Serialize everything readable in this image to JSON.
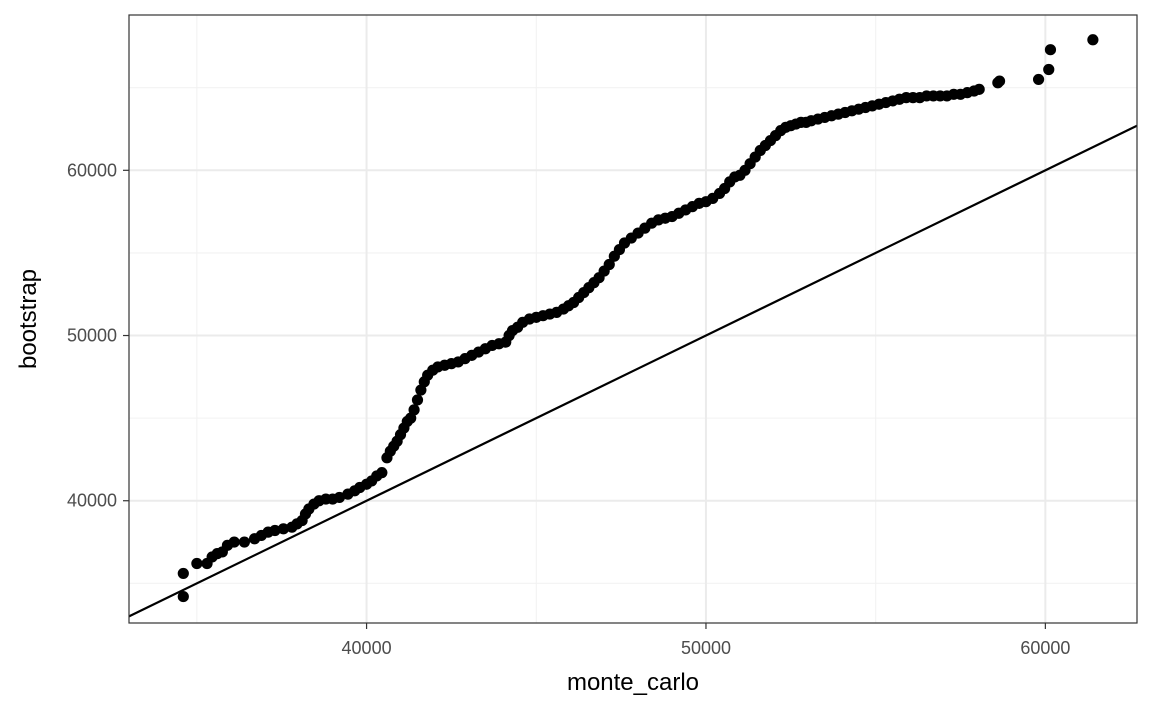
{
  "chart_data": {
    "type": "scatter",
    "title": "",
    "xlabel": "monte_carlo",
    "ylabel": "bootstrap",
    "xlim": [
      33000,
      62700
    ],
    "ylim": [
      32600,
      69400
    ],
    "x_ticks": [
      40000,
      50000,
      60000
    ],
    "y_ticks": [
      40000,
      50000,
      60000
    ],
    "x_tick_labels": [
      "40000",
      "50000",
      "60000"
    ],
    "y_tick_labels": [
      "40000",
      "50000",
      "60000"
    ],
    "grid": true,
    "theme": "bw",
    "reference_line": {
      "type": "identity",
      "slope": 1,
      "intercept": 0
    },
    "series": [
      {
        "marker_color": "#000000",
        "points": [
          [
            34600,
            34200
          ],
          [
            34600,
            35600
          ],
          [
            35000,
            36200
          ],
          [
            35300,
            36200
          ],
          [
            35450,
            36600
          ],
          [
            35600,
            36800
          ],
          [
            35750,
            36900
          ],
          [
            35900,
            37300
          ],
          [
            36100,
            37500
          ],
          [
            36400,
            37500
          ],
          [
            36700,
            37700
          ],
          [
            36900,
            37900
          ],
          [
            37100,
            38100
          ],
          [
            37300,
            38200
          ],
          [
            37550,
            38300
          ],
          [
            37800,
            38400
          ],
          [
            37950,
            38600
          ],
          [
            38100,
            38800
          ],
          [
            38200,
            39200
          ],
          [
            38300,
            39500
          ],
          [
            38450,
            39800
          ],
          [
            38600,
            40000
          ],
          [
            38800,
            40100
          ],
          [
            39000,
            40100
          ],
          [
            39200,
            40200
          ],
          [
            39450,
            40400
          ],
          [
            39650,
            40600
          ],
          [
            39800,
            40800
          ],
          [
            40000,
            41000
          ],
          [
            40150,
            41200
          ],
          [
            40300,
            41500
          ],
          [
            40450,
            41700
          ],
          [
            40600,
            42600
          ],
          [
            40700,
            43000
          ],
          [
            40800,
            43300
          ],
          [
            40900,
            43600
          ],
          [
            41000,
            44000
          ],
          [
            41100,
            44400
          ],
          [
            41200,
            44800
          ],
          [
            41300,
            45000
          ],
          [
            41400,
            45500
          ],
          [
            41500,
            46100
          ],
          [
            41600,
            46700
          ],
          [
            41700,
            47200
          ],
          [
            41800,
            47600
          ],
          [
            41950,
            47900
          ],
          [
            42100,
            48100
          ],
          [
            42300,
            48200
          ],
          [
            42500,
            48300
          ],
          [
            42700,
            48400
          ],
          [
            42900,
            48600
          ],
          [
            43100,
            48800
          ],
          [
            43300,
            49000
          ],
          [
            43500,
            49200
          ],
          [
            43700,
            49400
          ],
          [
            43900,
            49500
          ],
          [
            44100,
            49600
          ],
          [
            44200,
            50000
          ],
          [
            44300,
            50300
          ],
          [
            44450,
            50500
          ],
          [
            44600,
            50800
          ],
          [
            44800,
            51000
          ],
          [
            45000,
            51100
          ],
          [
            45200,
            51200
          ],
          [
            45400,
            51300
          ],
          [
            45600,
            51400
          ],
          [
            45800,
            51600
          ],
          [
            45950,
            51800
          ],
          [
            46100,
            52000
          ],
          [
            46250,
            52300
          ],
          [
            46400,
            52600
          ],
          [
            46550,
            52900
          ],
          [
            46700,
            53200
          ],
          [
            46850,
            53500
          ],
          [
            47000,
            53900
          ],
          [
            47150,
            54300
          ],
          [
            47300,
            54800
          ],
          [
            47450,
            55200
          ],
          [
            47600,
            55600
          ],
          [
            47800,
            55900
          ],
          [
            48000,
            56200
          ],
          [
            48200,
            56500
          ],
          [
            48400,
            56800
          ],
          [
            48600,
            57000
          ],
          [
            48800,
            57100
          ],
          [
            49000,
            57200
          ],
          [
            49200,
            57400
          ],
          [
            49400,
            57600
          ],
          [
            49600,
            57800
          ],
          [
            49800,
            58000
          ],
          [
            50000,
            58100
          ],
          [
            50200,
            58300
          ],
          [
            50400,
            58600
          ],
          [
            50550,
            58900
          ],
          [
            50700,
            59300
          ],
          [
            50850,
            59600
          ],
          [
            51000,
            59700
          ],
          [
            51150,
            60000
          ],
          [
            51300,
            60400
          ],
          [
            51450,
            60800
          ],
          [
            51600,
            61200
          ],
          [
            51750,
            61500
          ],
          [
            51900,
            61800
          ],
          [
            52050,
            62100
          ],
          [
            52200,
            62400
          ],
          [
            52350,
            62600
          ],
          [
            52500,
            62700
          ],
          [
            52650,
            62800
          ],
          [
            52800,
            62900
          ],
          [
            52950,
            62900
          ],
          [
            53100,
            63000
          ],
          [
            53300,
            63100
          ],
          [
            53500,
            63200
          ],
          [
            53700,
            63300
          ],
          [
            53900,
            63400
          ],
          [
            54100,
            63500
          ],
          [
            54300,
            63600
          ],
          [
            54500,
            63700
          ],
          [
            54700,
            63800
          ],
          [
            54900,
            63900
          ],
          [
            55100,
            64000
          ],
          [
            55300,
            64100
          ],
          [
            55500,
            64200
          ],
          [
            55700,
            64300
          ],
          [
            55900,
            64400
          ],
          [
            56100,
            64400
          ],
          [
            56300,
            64400
          ],
          [
            56500,
            64500
          ],
          [
            56700,
            64500
          ],
          [
            56900,
            64500
          ],
          [
            57100,
            64500
          ],
          [
            57300,
            64600
          ],
          [
            57500,
            64600
          ],
          [
            57700,
            64700
          ],
          [
            57900,
            64800
          ],
          [
            58050,
            64900
          ],
          [
            58600,
            65300
          ],
          [
            58650,
            65400
          ],
          [
            59800,
            65500
          ],
          [
            60100,
            66100
          ],
          [
            60150,
            67300
          ],
          [
            61400,
            67900
          ]
        ]
      }
    ]
  }
}
